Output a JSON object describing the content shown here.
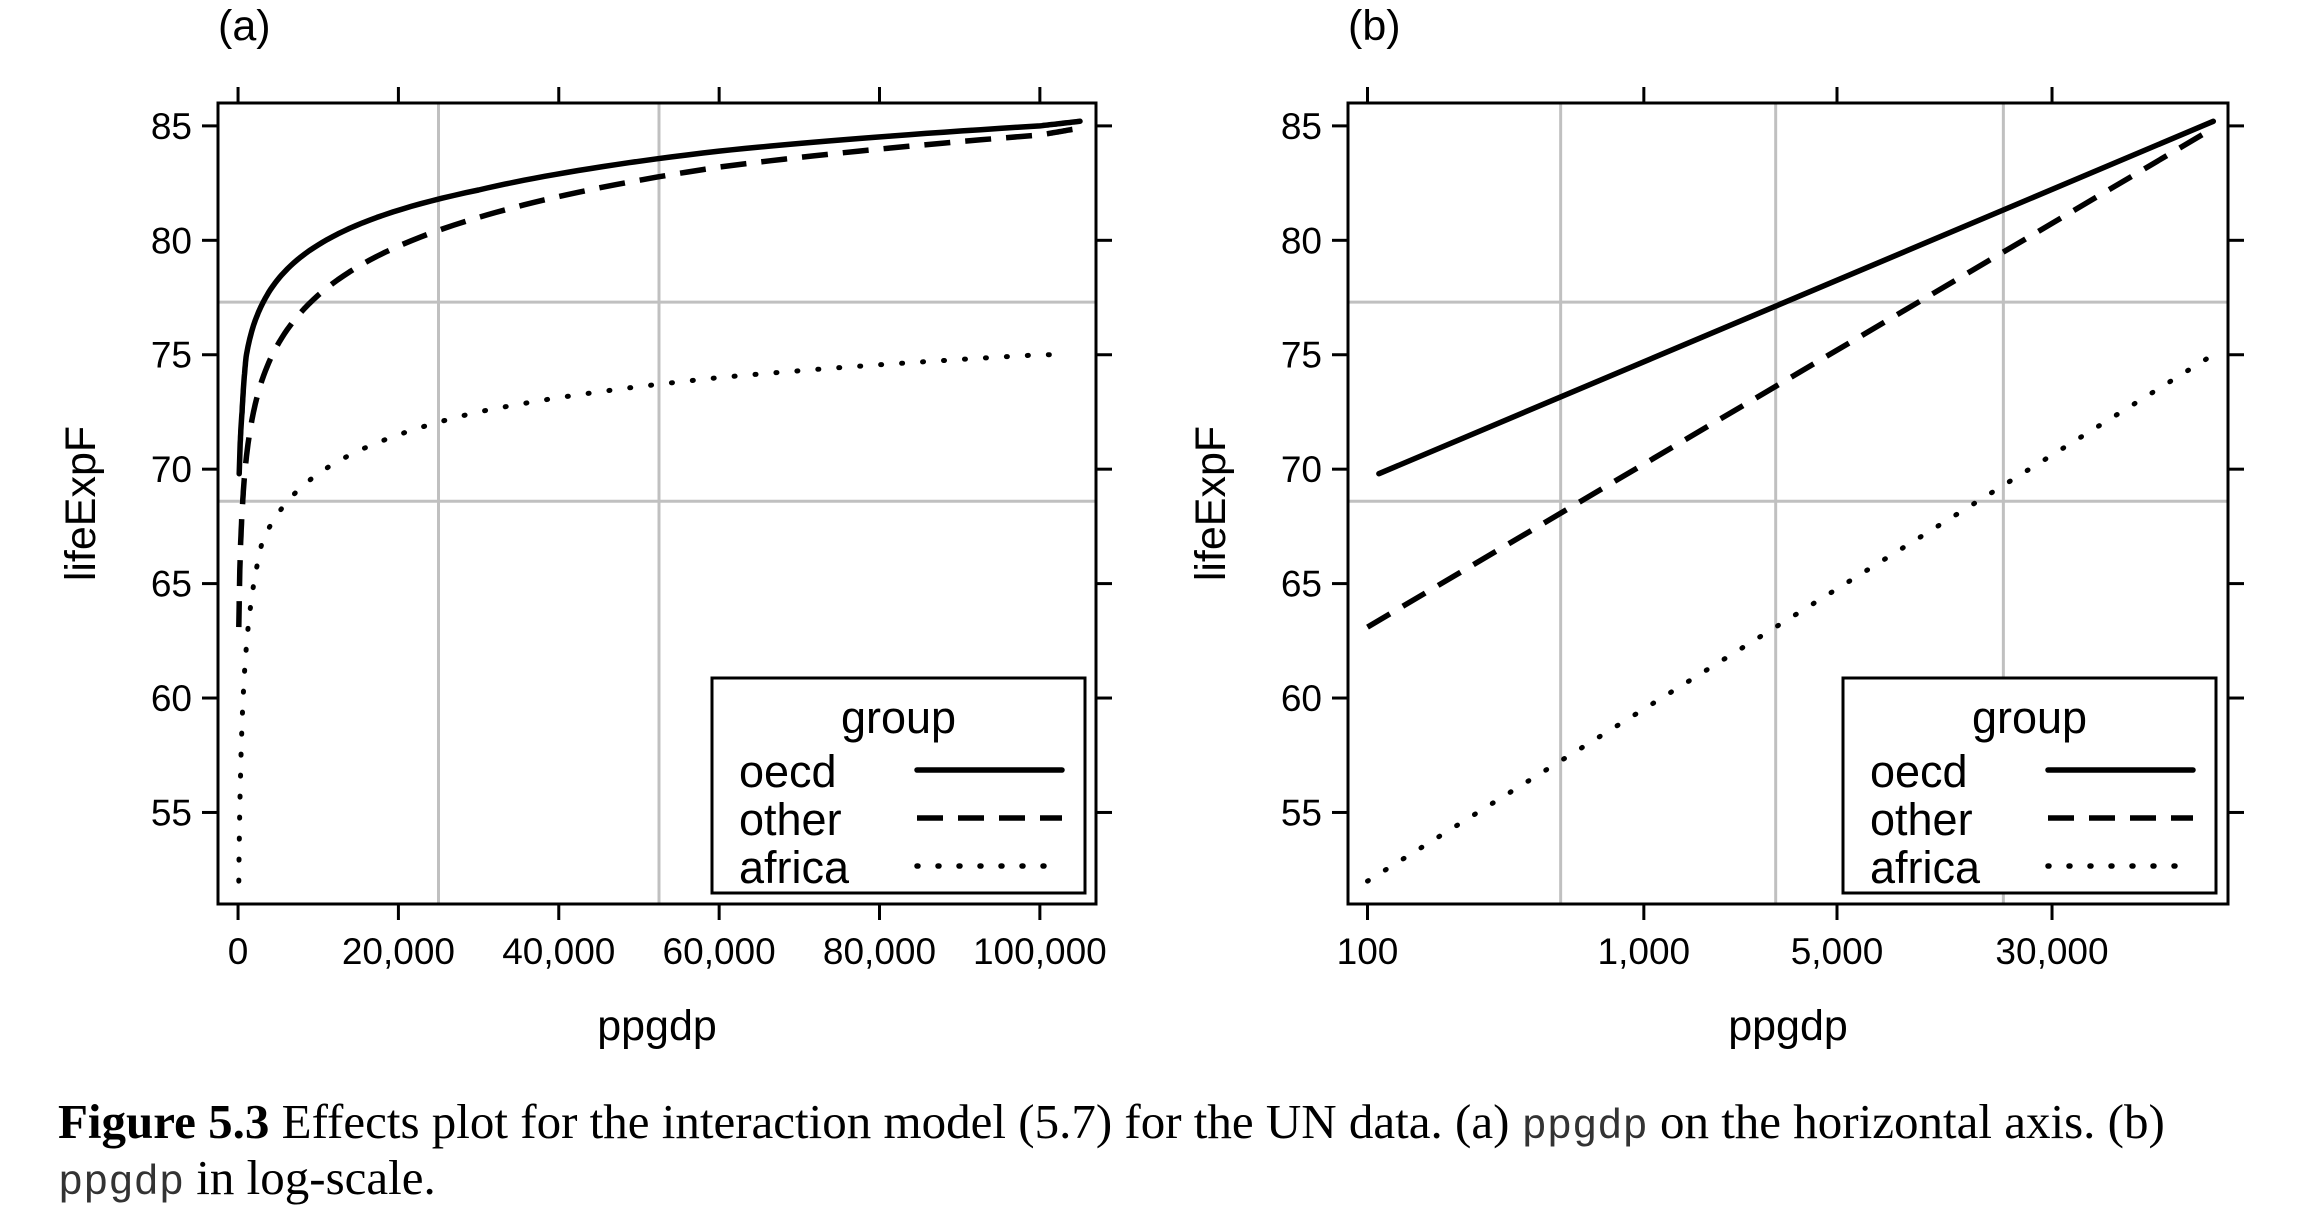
{
  "chart_data": [
    {
      "type": "line",
      "panel": "(a)",
      "xlabel": "ppgdp",
      "ylabel": "lifeExpF",
      "xscale": "linear",
      "xlim": [
        -2500,
        107000
      ],
      "ylim": [
        51,
        86
      ],
      "xticks": [
        0,
        20000,
        40000,
        60000,
        80000,
        100000
      ],
      "xtick_labels": [
        "0",
        "20,000",
        "40,000",
        "60,000",
        "80,000",
        "100,000"
      ],
      "yticks": [
        55,
        60,
        65,
        70,
        75,
        80,
        85
      ],
      "ytick_labels": [
        "55",
        "60",
        "65",
        "70",
        "75",
        "80",
        "85"
      ],
      "grid": true,
      "grid_x": [
        25000,
        52500
      ],
      "grid_y": [
        68.6,
        77.3
      ],
      "legend": {
        "title": "group",
        "position": "bottom-right"
      },
      "series": [
        {
          "name": "oecd",
          "style": "solid",
          "x": [
            150,
            500,
            1000,
            3000,
            10000,
            30000,
            60000,
            100000,
            105000
          ],
          "y": [
            69.8,
            72.5,
            74.9,
            77.2,
            79.8,
            82.2,
            83.9,
            85.0,
            85.2
          ]
        },
        {
          "name": "other",
          "style": "dashed",
          "x": [
            100,
            500,
            1000,
            3000,
            10000,
            30000,
            60000,
            100000,
            105000
          ],
          "y": [
            63.1,
            68.1,
            70.4,
            73.9,
            77.6,
            81.0,
            83.2,
            84.6,
            84.9
          ]
        },
        {
          "name": "africa",
          "style": "dotted",
          "x": [
            100,
            300,
            1000,
            3000,
            10000,
            30000,
            60000,
            100000,
            103000
          ],
          "y": [
            52.0,
            56.5,
            62.1,
            66.8,
            69.8,
            72.5,
            74.0,
            75.0,
            75.0
          ]
        }
      ]
    },
    {
      "type": "line",
      "panel": "(b)",
      "xlabel": "ppgdp",
      "ylabel": "lifeExpF",
      "xscale": "log",
      "xlim": [
        85,
        130000
      ],
      "ylim": [
        51,
        86
      ],
      "xticks": [
        100,
        1000,
        5000,
        30000
      ],
      "xtick_labels": [
        "100",
        "1,000",
        "5,000",
        "30,000"
      ],
      "yticks": [
        55,
        60,
        65,
        70,
        75,
        80,
        85
      ],
      "ytick_labels": [
        "55",
        "60",
        "65",
        "70",
        "75",
        "80",
        "85"
      ],
      "grid": true,
      "grid_x": [
        500,
        3000,
        20000
      ],
      "grid_y": [
        68.6,
        77.3
      ],
      "legend": {
        "title": "group",
        "position": "bottom-right"
      },
      "series": [
        {
          "name": "oecd",
          "style": "solid",
          "x": [
            110,
            115000
          ],
          "y": [
            69.8,
            85.2
          ]
        },
        {
          "name": "other",
          "style": "dashed",
          "x": [
            100,
            115000
          ],
          "y": [
            63.1,
            84.9
          ]
        },
        {
          "name": "africa",
          "style": "dotted",
          "x": [
            100,
            115000
          ],
          "y": [
            52.0,
            75.0
          ]
        }
      ]
    }
  ],
  "caption": {
    "label": "Figure 5.3",
    "segments": [
      {
        "text": " Effects plot for the interaction model (5.7) for the UN data. (a) ",
        "mono": false
      },
      {
        "text": "ppgdp",
        "mono": true
      },
      {
        "text": " on the horizontal axis. (b) ",
        "mono": false
      },
      {
        "text": "ppgdp",
        "mono": true
      },
      {
        "text": " in log-scale.",
        "mono": false
      }
    ]
  },
  "colors": {
    "line": "#000000",
    "grid": "#c0c0c0",
    "frame": "#000000"
  }
}
